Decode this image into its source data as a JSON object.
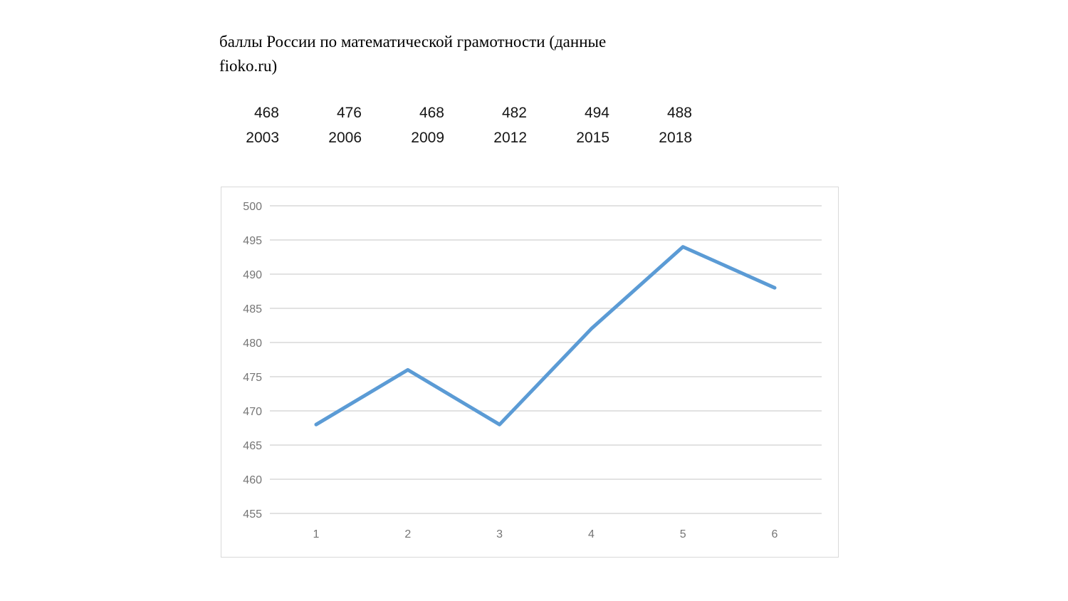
{
  "header": {
    "title_full": "баллы России по математической грамотности (данные fioko.ru)",
    "title_lines": [
      "баллы России по математической грамотности (данные",
      "fioko.ru)"
    ]
  },
  "data_table": {
    "values": [
      "468",
      "476",
      "468",
      "482",
      "494",
      "488"
    ],
    "years": [
      "2003",
      "2006",
      "2009",
      "2012",
      "2015",
      "2018"
    ]
  },
  "chart_data": {
    "type": "line",
    "title": "баллы России по математической грамотности (данные fioko.ru)",
    "x": [
      "1",
      "2",
      "3",
      "4",
      "5",
      "6"
    ],
    "year_labels": [
      "2003",
      "2006",
      "2009",
      "2012",
      "2015",
      "2018"
    ],
    "values": [
      468,
      476,
      468,
      482,
      494,
      488
    ],
    "xlabel": "",
    "ylabel": "",
    "ylim": [
      455,
      500
    ],
    "yticks": [
      500,
      495,
      490,
      485,
      480,
      475,
      470,
      465,
      460,
      455
    ],
    "grid": true,
    "legend": "none",
    "line_color": "#5b9bd5",
    "gridline_color": "#d9d9d9",
    "axis_label_color": "#757575",
    "border_color": "#d9d9d9"
  }
}
